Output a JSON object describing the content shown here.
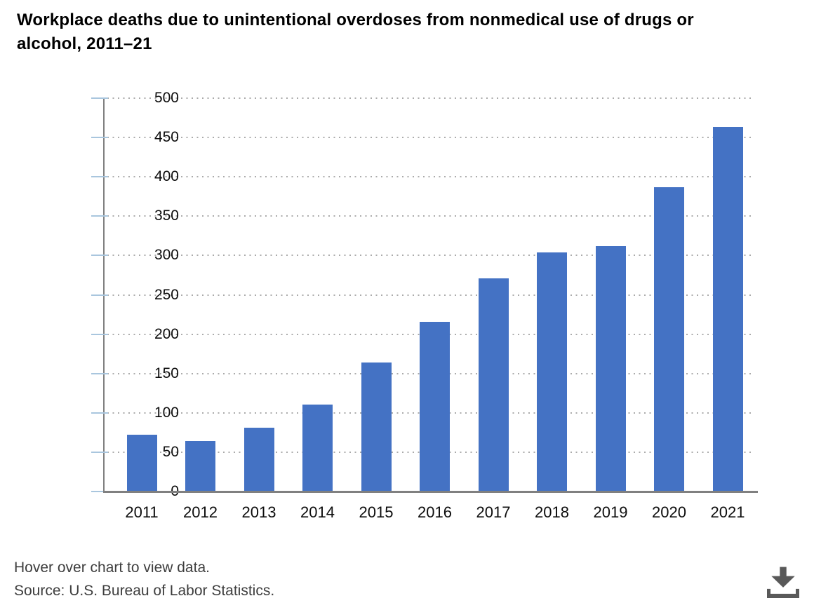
{
  "title": "Workplace deaths due to unintentional overdoses from nonmedical use of drugs or alcohol, 2011–21",
  "footer": {
    "hint": "Hover over chart to view data.",
    "source": "Source: U.S. Bureau of Labor Statistics."
  },
  "icons": {
    "download": "download-icon"
  },
  "colors": {
    "bar": "#4472C4",
    "axis": "#808080",
    "gridline": "#ABABAB",
    "tick": "#A9C6DE",
    "title_text": "#000000",
    "axis_label_text": "#0D0D0D",
    "footer_text": "#3E3E3E",
    "icon": "#595959",
    "background": "#FFFFFF"
  },
  "chart_data": {
    "type": "bar",
    "title": "Workplace deaths due to unintentional overdoses from nonmedical use of drugs or alcohol, 2011–21",
    "categories": [
      "2011",
      "2012",
      "2013",
      "2014",
      "2015",
      "2016",
      "2017",
      "2018",
      "2019",
      "2020",
      "2021"
    ],
    "values": [
      73,
      65,
      82,
      111,
      165,
      217,
      272,
      305,
      313,
      388,
      464
    ],
    "xlabel": "",
    "ylabel": "",
    "ylim": [
      0,
      500
    ],
    "ytick_step": 50,
    "yticks": [
      0,
      50,
      100,
      150,
      200,
      250,
      300,
      350,
      400,
      450,
      500
    ],
    "grid": "horizontal-dotted",
    "legend": "none",
    "bar_color": "#4472C4"
  }
}
